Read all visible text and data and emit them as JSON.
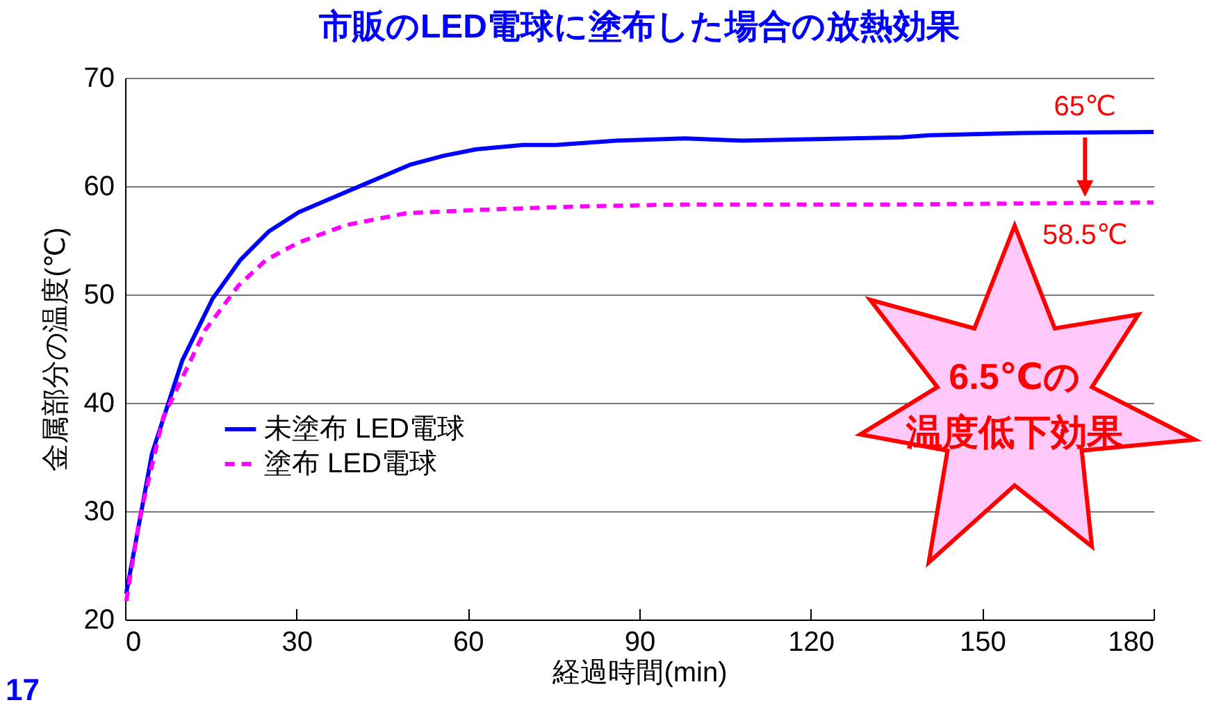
{
  "chart_data": {
    "type": "line",
    "title": "市販のLED電球に塗布した場合の放熱効果",
    "xlabel": "経過時間(min)",
    "ylabel": "金属部分の温度(℃)",
    "xlim": [
      0,
      180
    ],
    "xticks": [
      0,
      30,
      60,
      90,
      120,
      150,
      180
    ],
    "ylim": [
      20,
      70
    ],
    "yticks": [
      20,
      30,
      40,
      50,
      60,
      70
    ],
    "grid": "y",
    "legend": "bottom left",
    "series": [
      {
        "name": "未塗布  LED電球",
        "color": "#0000ff",
        "line_style": "solid",
        "x": [
          0.2,
          4.7,
          10,
          15.3,
          20.2,
          25.1,
          30.4,
          40.2,
          50,
          55.7,
          61.4,
          69.6,
          75.3,
          86,
          98,
          108,
          135.8,
          140.7,
          157,
          180
        ],
        "values": [
          22.4,
          35.3,
          43.9,
          49.6,
          53.2,
          55.8,
          57.6,
          59.8,
          62,
          62.8,
          63.4,
          63.8,
          63.8,
          64.2,
          64.4,
          64.2,
          64.5,
          64.7,
          64.9,
          65
        ]
      },
      {
        "name": "塗布 LED電球",
        "color": "#ff00ff",
        "line_style": "dashed",
        "x": [
          0.2,
          2.6,
          6.7,
          10,
          14,
          19.8,
          24.7,
          30.4,
          38.6,
          49.2,
          61.4,
          77.8,
          96.6,
          134,
          180
        ],
        "values": [
          21.7,
          29.5,
          38.7,
          42.3,
          46.7,
          50.8,
          53.2,
          54.8,
          56.4,
          57.5,
          57.8,
          58.1,
          58.3,
          58.3,
          58.5
        ]
      }
    ],
    "annotations": [
      {
        "text": "65℃",
        "x": 168,
        "y": 65
      },
      {
        "text": "58.5℃",
        "x": 168,
        "y": 58.5
      },
      "6.5℃の",
      "温度低下効果",
      "17"
    ]
  }
}
